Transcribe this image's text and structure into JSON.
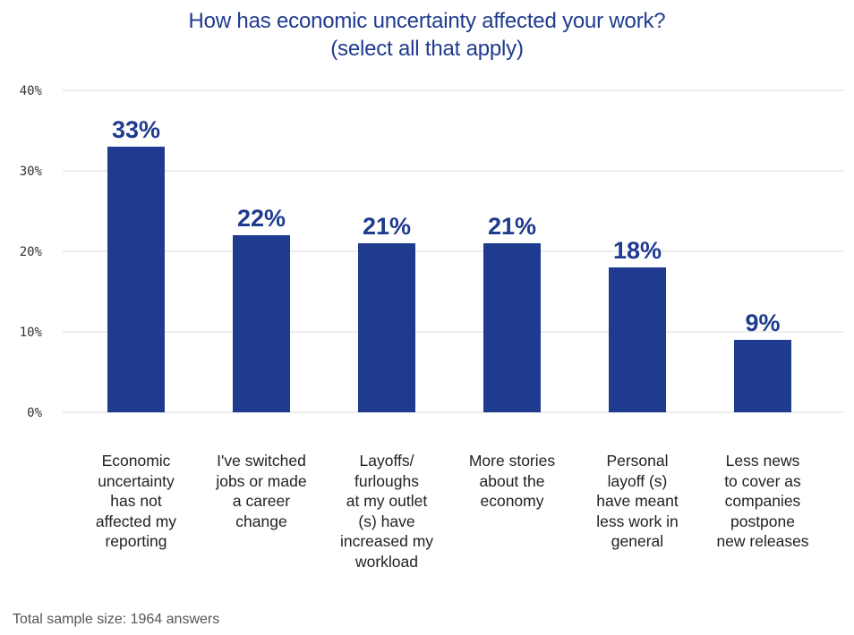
{
  "chart_data": {
    "type": "bar",
    "title_lines": [
      "How has economic uncertainty affected your work?",
      "(select all that apply)"
    ],
    "categories": [
      "Economic uncertainty has not affected my reporting",
      "I've switched jobs or made a career change",
      "Layoffs/ furloughs at my outlet (s) have increased my workload",
      "More stories about the economy",
      "Personal layoff (s) have meant less work in general",
      "Less news to cover as companies postpone new releases"
    ],
    "category_label_lines": [
      [
        "Economic",
        "uncertainty",
        "has not",
        "affected my",
        "reporting"
      ],
      [
        "I've switched",
        "jobs or made",
        "a career",
        "change"
      ],
      [
        "Layoffs/",
        "furloughs",
        "at my outlet",
        "(s)  have",
        "increased my",
        "workload"
      ],
      [
        "More stories",
        "about the",
        "economy"
      ],
      [
        "Personal",
        "layoff (s)",
        "have meant",
        "less work in",
        "general"
      ],
      [
        "Less news",
        "to cover as",
        "companies",
        "postpone",
        "new releases"
      ]
    ],
    "values": [
      33,
      22,
      21,
      21,
      18,
      9
    ],
    "value_labels": [
      "33%",
      "22%",
      "21%",
      "21%",
      "18%",
      "9%"
    ],
    "ylim": [
      0,
      40
    ],
    "yticks": [
      0,
      10,
      20,
      30,
      40
    ],
    "ytick_labels": [
      "0%",
      "10%",
      "20%",
      "30%",
      "40%"
    ],
    "xlabel": "",
    "ylabel": "",
    "grid": true,
    "bar_color": "#1f3b8f",
    "label_color": "#1f3b8f",
    "grid_color": "#d9d9d9"
  },
  "footnote": "Total sample size: 1964 answers"
}
